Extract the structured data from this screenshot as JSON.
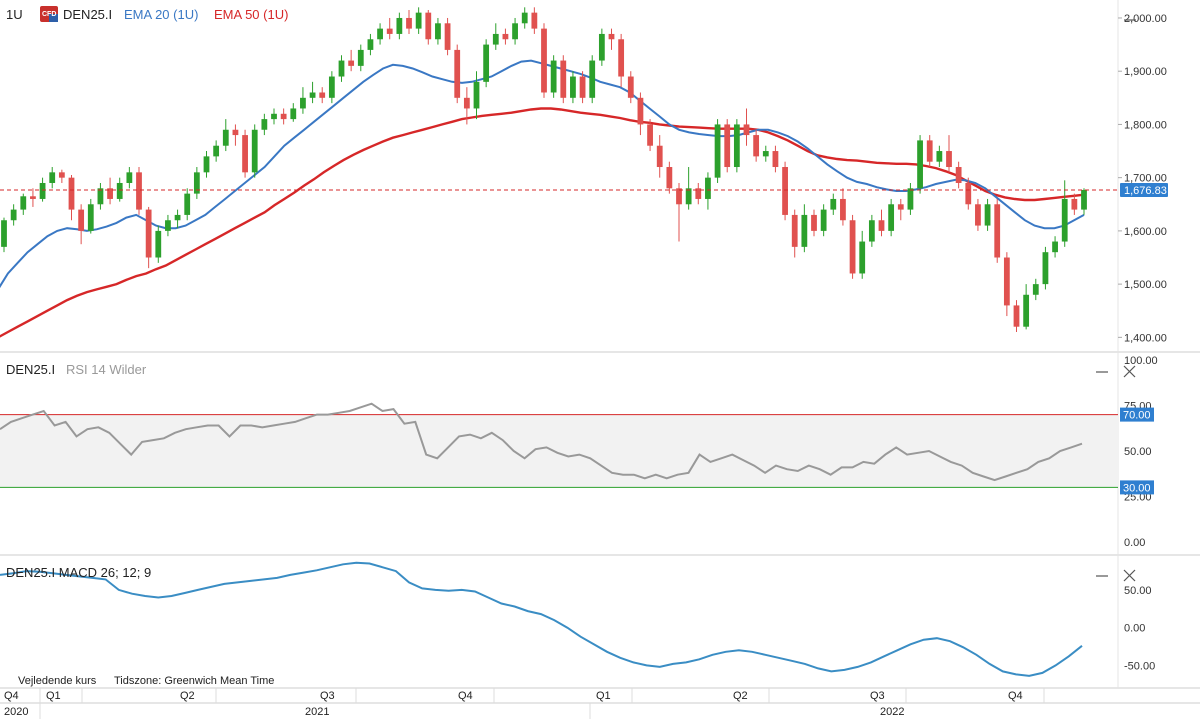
{
  "header": {
    "timeframe": "1U",
    "symbol": "DEN25.I",
    "indicator1": "EMA 20 (1U)",
    "indicator2": "EMA 50 (1U)"
  },
  "colors": {
    "up": "#2ca02c",
    "down": "#e0514f",
    "ema20": "#3a78c4",
    "ema50": "#d62728",
    "rsi": "#999999",
    "macd": "#3a8dc4",
    "overbought": "#d62728",
    "oversold": "#2ca02c",
    "priceTag": "#2f7fd0"
  },
  "icons": {
    "logo": "cfd-logo-icon",
    "minimize": "minimize-icon",
    "close": "close-icon"
  },
  "price_pane": {
    "last_price_label": "1,676.83",
    "y_ticks": [
      "2,000.00",
      "1,900.00",
      "1,800.00",
      "1,700.00",
      "1,600.00",
      "1,500.00",
      "1,400.00"
    ]
  },
  "rsi_pane": {
    "title_symbol": "DEN25.I",
    "title_indicator": "RSI 14 Wilder",
    "y_ticks": [
      "100.00",
      "75.00",
      "50.00",
      "25.00",
      "0.00"
    ],
    "overbought_label": "70.00",
    "oversold_label": "30.00"
  },
  "macd_pane": {
    "title": "DEN25.I MACD 26; 12; 9",
    "y_ticks": [
      "50.00",
      "0.00",
      "-50.00"
    ]
  },
  "footer": {
    "left": "Vejledende kurs",
    "timezone": "Tidszone: Greenwich Mean Time"
  },
  "x_axis": {
    "quarters": [
      "Q4",
      "Q1",
      "Q2",
      "Q3",
      "Q4",
      "Q1",
      "Q2",
      "Q3",
      "Q4"
    ],
    "years": [
      "2020",
      "2021",
      "2022"
    ]
  },
  "chart_data": [
    {
      "type": "candlestick",
      "title": "DEN25.I",
      "ylim": [
        1380,
        2030
      ],
      "candles": [
        [
          1570,
          1620,
          1560,
          1625
        ],
        [
          1620,
          1640,
          1610,
          1650
        ],
        [
          1640,
          1665,
          1630,
          1670
        ],
        [
          1665,
          1660,
          1645,
          1680
        ],
        [
          1660,
          1690,
          1655,
          1700
        ],
        [
          1690,
          1710,
          1680,
          1720
        ],
        [
          1710,
          1700,
          1690,
          1715
        ],
        [
          1700,
          1640,
          1620,
          1705
        ],
        [
          1640,
          1600,
          1575,
          1650
        ],
        [
          1600,
          1650,
          1595,
          1660
        ],
        [
          1650,
          1680,
          1640,
          1690
        ],
        [
          1680,
          1660,
          1650,
          1700
        ],
        [
          1660,
          1690,
          1655,
          1700
        ],
        [
          1690,
          1710,
          1680,
          1720
        ],
        [
          1710,
          1640,
          1630,
          1720
        ],
        [
          1640,
          1550,
          1530,
          1645
        ],
        [
          1550,
          1600,
          1540,
          1610
        ],
        [
          1600,
          1620,
          1590,
          1630
        ],
        [
          1620,
          1630,
          1605,
          1640
        ],
        [
          1630,
          1670,
          1620,
          1680
        ],
        [
          1670,
          1710,
          1660,
          1720
        ],
        [
          1710,
          1740,
          1700,
          1750
        ],
        [
          1740,
          1760,
          1730,
          1770
        ],
        [
          1760,
          1790,
          1750,
          1810
        ],
        [
          1790,
          1780,
          1760,
          1800
        ],
        [
          1780,
          1710,
          1700,
          1790
        ],
        [
          1710,
          1790,
          1700,
          1800
        ],
        [
          1790,
          1810,
          1780,
          1820
        ],
        [
          1810,
          1820,
          1800,
          1830
        ],
        [
          1820,
          1810,
          1800,
          1830
        ],
        [
          1810,
          1830,
          1805,
          1840
        ],
        [
          1830,
          1850,
          1820,
          1870
        ],
        [
          1850,
          1860,
          1840,
          1880
        ],
        [
          1860,
          1850,
          1840,
          1870
        ],
        [
          1850,
          1890,
          1840,
          1900
        ],
        [
          1890,
          1920,
          1880,
          1930
        ],
        [
          1920,
          1910,
          1900,
          1940
        ],
        [
          1910,
          1940,
          1900,
          1950
        ],
        [
          1940,
          1960,
          1930,
          1970
        ],
        [
          1960,
          1980,
          1950,
          1990
        ],
        [
          1980,
          1970,
          1960,
          2000
        ],
        [
          1970,
          2000,
          1960,
          2010
        ],
        [
          2000,
          1980,
          1970,
          2015
        ],
        [
          1980,
          2010,
          1970,
          2020
        ],
        [
          2010,
          1960,
          1950,
          2015
        ],
        [
          1960,
          1990,
          1950,
          2000
        ],
        [
          1990,
          1940,
          1930,
          2000
        ],
        [
          1940,
          1850,
          1840,
          1950
        ],
        [
          1850,
          1830,
          1800,
          1870
        ],
        [
          1830,
          1880,
          1810,
          1900
        ],
        [
          1880,
          1950,
          1870,
          1960
        ],
        [
          1950,
          1970,
          1940,
          1990
        ],
        [
          1970,
          1960,
          1950,
          1980
        ],
        [
          1960,
          1990,
          1950,
          2000
        ],
        [
          1990,
          2010,
          1980,
          2020
        ],
        [
          2010,
          1980,
          1970,
          2020
        ],
        [
          1980,
          1860,
          1850,
          1990
        ],
        [
          1860,
          1920,
          1850,
          1930
        ],
        [
          1920,
          1850,
          1840,
          1930
        ],
        [
          1850,
          1890,
          1840,
          1900
        ],
        [
          1890,
          1850,
          1840,
          1900
        ],
        [
          1850,
          1920,
          1840,
          1930
        ],
        [
          1920,
          1970,
          1910,
          1980
        ],
        [
          1970,
          1960,
          1940,
          1980
        ],
        [
          1960,
          1890,
          1870,
          1970
        ],
        [
          1890,
          1850,
          1840,
          1900
        ],
        [
          1850,
          1800,
          1780,
          1860
        ],
        [
          1800,
          1760,
          1750,
          1810
        ],
        [
          1760,
          1720,
          1700,
          1780
        ],
        [
          1720,
          1680,
          1670,
          1730
        ],
        [
          1680,
          1650,
          1580,
          1690
        ],
        [
          1650,
          1680,
          1640,
          1720
        ],
        [
          1680,
          1660,
          1650,
          1690
        ],
        [
          1660,
          1700,
          1640,
          1710
        ],
        [
          1700,
          1800,
          1690,
          1810
        ],
        [
          1800,
          1720,
          1710,
          1810
        ],
        [
          1720,
          1800,
          1710,
          1810
        ],
        [
          1800,
          1780,
          1760,
          1830
        ],
        [
          1780,
          1740,
          1730,
          1790
        ],
        [
          1740,
          1750,
          1730,
          1760
        ],
        [
          1750,
          1720,
          1710,
          1760
        ],
        [
          1720,
          1630,
          1620,
          1730
        ],
        [
          1630,
          1570,
          1550,
          1640
        ],
        [
          1570,
          1630,
          1560,
          1650
        ],
        [
          1630,
          1600,
          1590,
          1640
        ],
        [
          1600,
          1640,
          1590,
          1650
        ],
        [
          1640,
          1660,
          1630,
          1670
        ],
        [
          1660,
          1620,
          1610,
          1680
        ],
        [
          1620,
          1520,
          1510,
          1630
        ],
        [
          1520,
          1580,
          1510,
          1600
        ],
        [
          1580,
          1620,
          1570,
          1630
        ],
        [
          1620,
          1600,
          1590,
          1640
        ],
        [
          1600,
          1650,
          1590,
          1660
        ],
        [
          1650,
          1640,
          1620,
          1660
        ],
        [
          1640,
          1680,
          1630,
          1690
        ],
        [
          1680,
          1770,
          1670,
          1780
        ],
        [
          1770,
          1730,
          1720,
          1780
        ],
        [
          1730,
          1750,
          1720,
          1760
        ],
        [
          1750,
          1720,
          1710,
          1780
        ],
        [
          1720,
          1690,
          1680,
          1730
        ],
        [
          1690,
          1650,
          1640,
          1700
        ],
        [
          1650,
          1610,
          1600,
          1660
        ],
        [
          1610,
          1650,
          1600,
          1660
        ],
        [
          1650,
          1550,
          1540,
          1660
        ],
        [
          1550,
          1460,
          1440,
          1560
        ],
        [
          1460,
          1420,
          1410,
          1470
        ],
        [
          1420,
          1480,
          1415,
          1500
        ],
        [
          1480,
          1500,
          1470,
          1510
        ],
        [
          1500,
          1560,
          1490,
          1570
        ],
        [
          1560,
          1580,
          1550,
          1590
        ],
        [
          1580,
          1660,
          1570,
          1695
        ],
        [
          1660,
          1640,
          1630,
          1670
        ],
        [
          1640,
          1676.83,
          1630,
          1680
        ]
      ],
      "ema20": [
        1490,
        1520,
        1540,
        1560,
        1575,
        1590,
        1600,
        1605,
        1603,
        1600,
        1603,
        1608,
        1615,
        1625,
        1630,
        1620,
        1610,
        1605,
        1605,
        1610,
        1620,
        1630,
        1645,
        1660,
        1675,
        1690,
        1705,
        1720,
        1740,
        1760,
        1775,
        1790,
        1805,
        1820,
        1835,
        1850,
        1865,
        1880,
        1893,
        1905,
        1912,
        1910,
        1905,
        1898,
        1890,
        1885,
        1880,
        1878,
        1880,
        1885,
        1890,
        1900,
        1910,
        1918,
        1920,
        1915,
        1910,
        1905,
        1900,
        1895,
        1888,
        1880,
        1875,
        1870,
        1860,
        1845,
        1830,
        1815,
        1800,
        1790,
        1785,
        1782,
        1780,
        1778,
        1778,
        1780,
        1785,
        1790,
        1790,
        1785,
        1778,
        1768,
        1755,
        1740,
        1725,
        1712,
        1700,
        1692,
        1688,
        1682,
        1678,
        1675,
        1675,
        1678,
        1682,
        1688,
        1692,
        1696,
        1695,
        1690,
        1680,
        1665,
        1650,
        1635,
        1620,
        1610,
        1605,
        1605,
        1610,
        1620,
        1630
      ],
      "ema50": [
        1400,
        1410,
        1420,
        1430,
        1440,
        1450,
        1460,
        1470,
        1478,
        1485,
        1490,
        1495,
        1500,
        1508,
        1515,
        1520,
        1528,
        1535,
        1545,
        1555,
        1565,
        1575,
        1585,
        1595,
        1605,
        1615,
        1625,
        1635,
        1648,
        1660,
        1672,
        1685,
        1697,
        1710,
        1722,
        1733,
        1743,
        1752,
        1760,
        1768,
        1775,
        1780,
        1785,
        1790,
        1795,
        1800,
        1805,
        1810,
        1813,
        1816,
        1818,
        1820,
        1822,
        1825,
        1828,
        1830,
        1830,
        1828,
        1825,
        1822,
        1820,
        1818,
        1815,
        1812,
        1808,
        1805,
        1803,
        1800,
        1798,
        1796,
        1795,
        1794,
        1793,
        1792,
        1792,
        1792,
        1792,
        1790,
        1785,
        1778,
        1770,
        1760,
        1750,
        1742,
        1738,
        1735,
        1733,
        1732,
        1730,
        1728,
        1727,
        1726,
        1726,
        1725,
        1722,
        1718,
        1712,
        1705,
        1695,
        1685,
        1675,
        1668,
        1663,
        1660,
        1658,
        1658,
        1660,
        1662,
        1664,
        1666,
        1668
      ]
    },
    {
      "type": "line",
      "title": "RSI 14 Wilder",
      "ylim": [
        0,
        100
      ],
      "reference_lines": [
        70,
        30
      ],
      "values": [
        62,
        66,
        68,
        70,
        72,
        64,
        66,
        58,
        62,
        63,
        60,
        54,
        48,
        55,
        56,
        57,
        60,
        62,
        63,
        64,
        64,
        58,
        64,
        64,
        63,
        64,
        65,
        66,
        68,
        70,
        70,
        71,
        72,
        74,
        76,
        72,
        73,
        65,
        66,
        48,
        46,
        52,
        58,
        59,
        57,
        60,
        56,
        50,
        46,
        51,
        52,
        49,
        47,
        48,
        46,
        42,
        38,
        37,
        37,
        35,
        37,
        35,
        37,
        38,
        48,
        44,
        46,
        48,
        45,
        42,
        38,
        42,
        40,
        39,
        42,
        40,
        37,
        41,
        41,
        44,
        43,
        48,
        52,
        48,
        49,
        50,
        47,
        44,
        42,
        38,
        36,
        34,
        36,
        38,
        40,
        44,
        46,
        50,
        52,
        54
      ],
      "current": 55
    },
    {
      "type": "line",
      "title": "MACD 26; 12; 9",
      "ylim": [
        -80,
        95
      ],
      "values": [
        70,
        72,
        75,
        74,
        72,
        70,
        68,
        66,
        64,
        50,
        45,
        42,
        40,
        42,
        46,
        50,
        54,
        58,
        60,
        62,
        64,
        66,
        70,
        73,
        76,
        80,
        84,
        86,
        85,
        80,
        75,
        60,
        52,
        50,
        49,
        50,
        48,
        40,
        32,
        28,
        22,
        18,
        10,
        0,
        -12,
        -22,
        -32,
        -40,
        -46,
        -50,
        -52,
        -48,
        -46,
        -42,
        -36,
        -32,
        -30,
        -32,
        -36,
        -40,
        -44,
        -48,
        -54,
        -58,
        -56,
        -52,
        -46,
        -38,
        -30,
        -22,
        -16,
        -14,
        -18,
        -26,
        -36,
        -48,
        -58,
        -62,
        -64,
        -60,
        -50,
        -38,
        -24
      ]
    }
  ]
}
